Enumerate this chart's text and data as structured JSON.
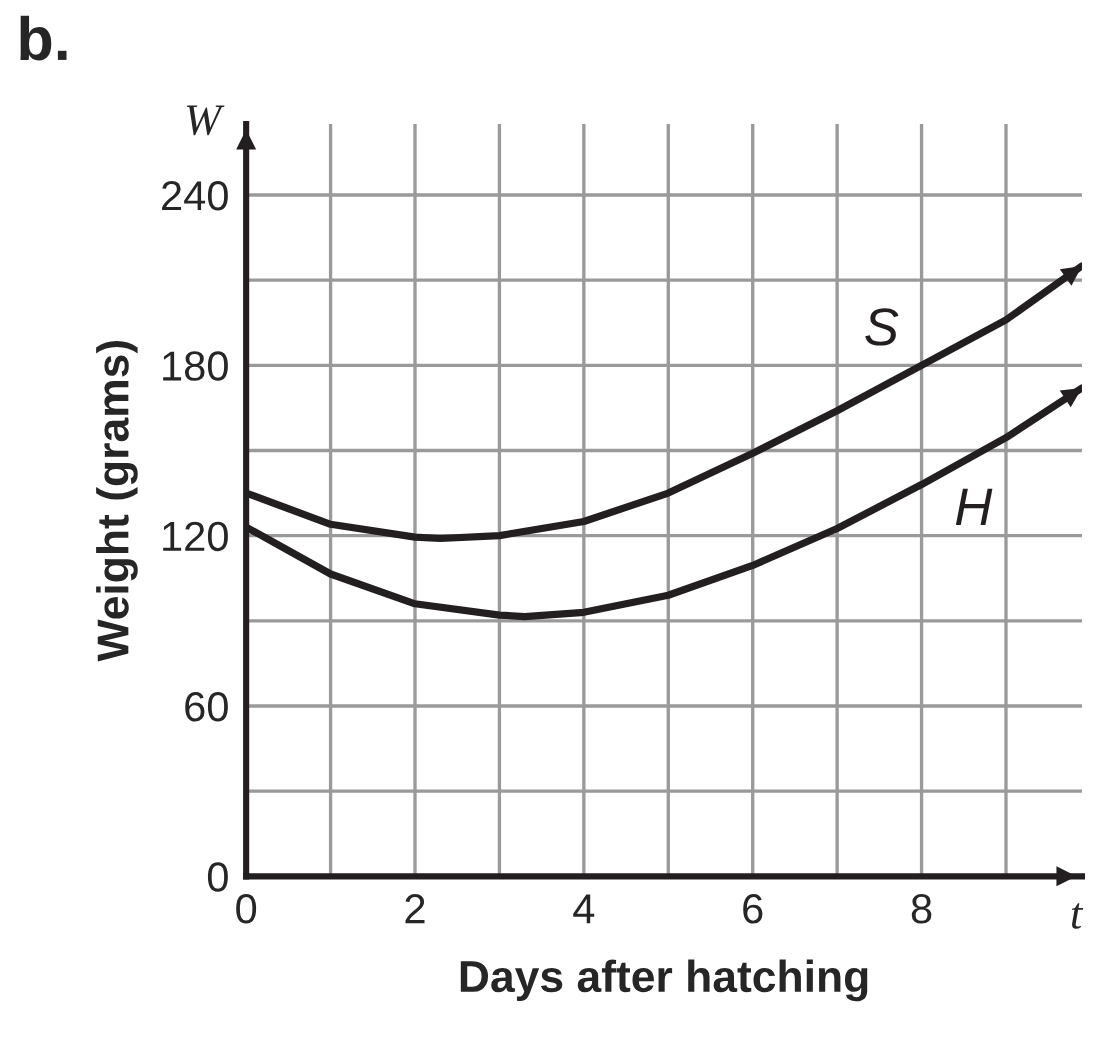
{
  "chart_data": {
    "type": "line",
    "title": "b.",
    "xlabel": "Days after hatching",
    "ylabel": "Weight (grams)",
    "annotations": [
      "W",
      "t"
    ],
    "x": [
      0,
      1,
      2,
      2.3,
      3,
      4,
      5,
      6,
      7,
      8,
      9,
      9.9
    ],
    "series": [
      {
        "name": "S",
        "color": "#231f20",
        "values": [
          135,
          124,
          119.5,
          119,
          120,
          125,
          135,
          149,
          164,
          180,
          196,
          215
        ]
      },
      {
        "name": "H",
        "color": "#231f20",
        "x": [
          0,
          1,
          2,
          3,
          3.3,
          4,
          5,
          6,
          7,
          8,
          9,
          9.9
        ],
        "values": [
          123,
          106.5,
          96,
          92,
          91.5,
          93,
          99,
          109.5,
          122.5,
          138,
          154.5,
          172
        ]
      }
    ],
    "xlim": [
      0,
      9.9
    ],
    "ylim": [
      0,
      265
    ],
    "xticks": [
      0,
      {
        "value": 1,
        "label": null
      },
      2,
      {
        "value": 3,
        "label": null
      },
      4,
      {
        "value": 5,
        "label": null
      },
      6,
      {
        "value": 7,
        "label": null
      },
      8,
      {
        "value": 9,
        "label": null
      }
    ],
    "yticks": [
      0,
      {
        "value": 30,
        "label": null
      },
      60,
      {
        "value": 90,
        "label": null
      },
      120,
      {
        "value": 150,
        "label": null
      },
      180,
      {
        "value": 210,
        "label": null
      },
      240
    ],
    "grid": true,
    "marker": "none",
    "line_style": "solid"
  }
}
